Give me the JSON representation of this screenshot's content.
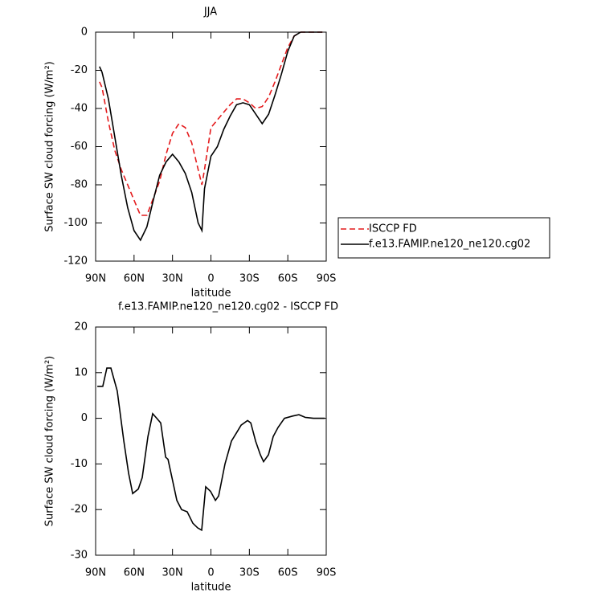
{
  "chart_data": [
    {
      "type": "line",
      "title": "JJA",
      "xlabel": "latitude",
      "ylabel": "Surface SW cloud forcing (W/m²)",
      "x": [
        87,
        85,
        80,
        75,
        70,
        65,
        60,
        55,
        50,
        45,
        40,
        35,
        30,
        25,
        20,
        15,
        10,
        7,
        5,
        0,
        -5,
        -10,
        -15,
        -20,
        -25,
        -30,
        -35,
        -40,
        -45,
        -50,
        -55,
        -60,
        -65,
        -70,
        -75,
        -80,
        -87
      ],
      "series": [
        {
          "name": "ISCCP FD",
          "color": "#e41a1c",
          "dash": true,
          "values": [
            -26,
            -29,
            -47,
            -62,
            -72,
            -80,
            -88,
            -96,
            -96,
            -87,
            -78,
            -64,
            -53,
            -48,
            -50,
            -58,
            -72,
            -80,
            -72,
            -50,
            -46,
            -42,
            -38,
            -35,
            -35,
            -37,
            -40,
            -39,
            -34,
            -26,
            -17,
            -8,
            -2,
            0,
            0,
            0,
            0
          ]
        },
        {
          "name": "f.e13.FAMIP.ne120_ne120.cg02",
          "color": "#000000",
          "dash": false,
          "values": [
            -18,
            -21,
            -35,
            -55,
            -75,
            -92,
            -104,
            -109,
            -102,
            -88,
            -75,
            -68,
            -64,
            -68,
            -74,
            -84,
            -100,
            -104,
            -82,
            -65,
            -60,
            -51,
            -44,
            -38,
            -37,
            -38,
            -43,
            -48,
            -43,
            -33,
            -22,
            -10,
            -2,
            0,
            0,
            0,
            0
          ]
        }
      ],
      "xlim": [
        90,
        -90
      ],
      "xticks": [
        {
          "value": 90,
          "label": "90N"
        },
        {
          "value": 60,
          "label": "60N"
        },
        {
          "value": 30,
          "label": "30N"
        },
        0,
        {
          "value": -30,
          "label": "30S"
        },
        {
          "value": -60,
          "label": "60S"
        },
        {
          "value": -90,
          "label": "90S"
        }
      ],
      "ylim": [
        -120,
        0
      ],
      "yticks": [
        -120,
        -100,
        -80,
        -60,
        -40,
        -20,
        0
      ],
      "legend": "outside-right"
    },
    {
      "type": "line",
      "title": "f.e13.FAMIP.ne120_ne120.cg02 - ISCCP FD",
      "xlabel": "latitude",
      "ylabel": "Surface SW cloud forcing (W/m²)",
      "x": [
        88.7,
        84.4,
        81.2,
        78.1,
        73.1,
        68.0,
        64.3,
        61.1,
        56.7,
        53.6,
        49.2,
        45.5,
        42.3,
        39.2,
        35.4,
        33.5,
        30.4,
        26.6,
        22.9,
        18.5,
        14.1,
        10.4,
        7.2,
        4.1,
        0.3,
        -3.5,
        -6.0,
        -11.0,
        -16.0,
        -20.4,
        -23.6,
        -28.6,
        -31.1,
        -34.9,
        -38.6,
        -41.1,
        -44.9,
        -48.6,
        -52.4,
        -57.4,
        -63.7,
        -68.7,
        -73.7,
        -80.0,
        -88.8
      ],
      "series": [
        {
          "color": "#000000",
          "dash": false,
          "values": [
            7,
            7,
            11,
            11,
            6,
            -5,
            -12,
            -16.5,
            -15.5,
            -13,
            -4,
            1,
            0,
            -1,
            -8.5,
            -9,
            -13,
            -18,
            -20,
            -20.5,
            -23,
            -24,
            -24.5,
            -15,
            -16,
            -18,
            -17,
            -10,
            -5,
            -3,
            -1.5,
            -0.5,
            -1,
            -5,
            -8,
            -9.5,
            -8,
            -4,
            -2,
            0,
            0.5,
            0.8,
            0.2,
            0,
            0
          ]
        }
      ],
      "xlim": [
        90,
        -90
      ],
      "xticks": [
        {
          "value": 90,
          "label": "90N"
        },
        {
          "value": 60,
          "label": "60N"
        },
        {
          "value": 30,
          "label": "30N"
        },
        0,
        {
          "value": -30,
          "label": "30S"
        },
        {
          "value": -60,
          "label": "60S"
        },
        {
          "value": -90,
          "label": "90S"
        }
      ],
      "ylim": [
        -30,
        20
      ],
      "yticks": [
        -30,
        -20,
        -10,
        0,
        10,
        20
      ]
    }
  ]
}
